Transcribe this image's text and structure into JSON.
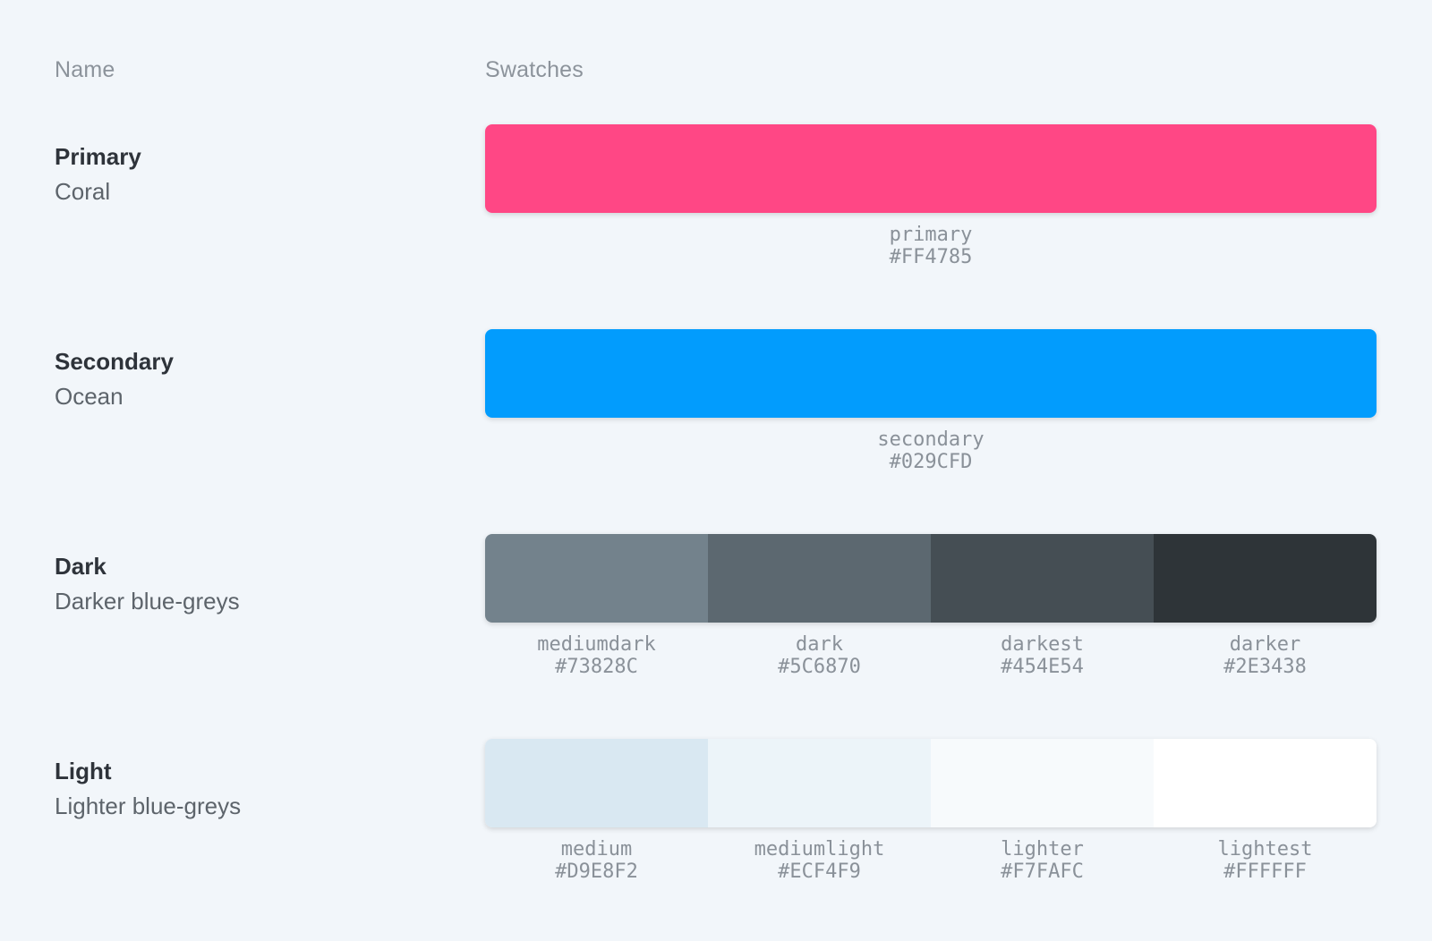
{
  "page": {
    "background_color": "#F2F6FA"
  },
  "table": {
    "name_header": "Name",
    "swatches_header": "Swatches",
    "rows": [
      {
        "title": "Primary",
        "subtitle": "Coral",
        "swatches": [
          {
            "name": "primary",
            "hex": "#FF4785"
          }
        ]
      },
      {
        "title": "Secondary",
        "subtitle": "Ocean",
        "swatches": [
          {
            "name": "secondary",
            "hex": "#029CFD"
          }
        ]
      },
      {
        "title": "Dark",
        "subtitle": "Darker blue-greys",
        "swatches": [
          {
            "name": "mediumdark",
            "hex": "#73828C"
          },
          {
            "name": "dark",
            "hex": "#5C6870"
          },
          {
            "name": "darkest",
            "hex": "#454E54"
          },
          {
            "name": "darker",
            "hex": "#2E3438"
          }
        ]
      },
      {
        "title": "Light",
        "subtitle": "Lighter blue-greys",
        "swatches": [
          {
            "name": "medium",
            "hex": "#D9E8F2"
          },
          {
            "name": "mediumlight",
            "hex": "#ECF4F9"
          },
          {
            "name": "lighter",
            "hex": "#F7FAFC"
          },
          {
            "name": "lightest",
            "hex": "#FFFFFF"
          }
        ]
      }
    ]
  }
}
